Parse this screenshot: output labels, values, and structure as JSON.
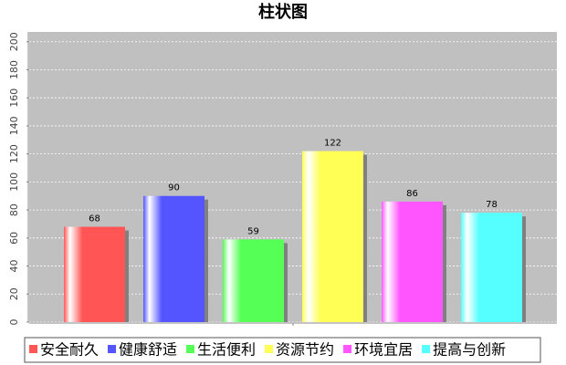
{
  "chart_data": {
    "type": "bar",
    "title": "柱状图",
    "categories": [
      null
    ],
    "series": [
      {
        "name": "安全耐久",
        "color": "#ff5555",
        "values": [
          68
        ]
      },
      {
        "name": "健康舒适",
        "color": "#5555ff",
        "values": [
          90
        ]
      },
      {
        "name": "生活便利",
        "color": "#55ff55",
        "values": [
          59
        ]
      },
      {
        "name": "资源节约",
        "color": "#ffff55",
        "values": [
          122
        ]
      },
      {
        "name": "环境宜居",
        "color": "#ff55ff",
        "values": [
          86
        ]
      },
      {
        "name": "提高与创新",
        "color": "#55ffff",
        "values": [
          78
        ]
      }
    ],
    "ylim": [
      0,
      207
    ],
    "yticks": [
      0,
      20,
      40,
      60,
      80,
      100,
      120,
      140,
      160,
      180,
      200
    ],
    "grid": true,
    "legend": "bottom"
  }
}
